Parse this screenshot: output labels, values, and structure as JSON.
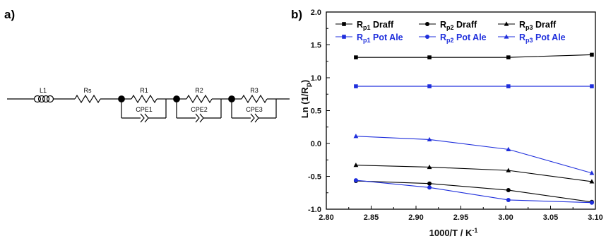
{
  "panel_a": {
    "label": "a)",
    "components": {
      "inductor": "L1",
      "series_resistor": "Rs",
      "r1": "R1",
      "r2": "R2",
      "r3": "R3",
      "cpe1": "CPE1",
      "cpe2": "CPE2",
      "cpe3": "CPE3"
    }
  },
  "panel_b": {
    "label": "b)"
  },
  "chart_data": {
    "type": "line",
    "title": "",
    "xlabel": "1000/T / K",
    "xlabel_sup": "-1",
    "ylabel": "Ln (1/R",
    "ylabel_sub": "p",
    "ylabel_end": ")",
    "xlim": [
      2.8,
      3.1
    ],
    "ylim": [
      -1.0,
      2.0
    ],
    "xticks": [
      "2.80",
      "2.85",
      "2.90",
      "2.95",
      "3.00",
      "3.05",
      "3.10"
    ],
    "yticks": [
      "-1.0",
      "-0.5",
      "0.0",
      "0.5",
      "1.0",
      "1.5",
      "2.0"
    ],
    "grid": false,
    "legend_position": "top",
    "x": [
      2.833,
      2.915,
      3.003,
      3.096
    ],
    "series": [
      {
        "name_main": "R",
        "name_sub": "p1",
        "name_rest": " Draff",
        "color": "#000000",
        "marker": "square",
        "values": [
          1.31,
          1.31,
          1.31,
          1.35
        ]
      },
      {
        "name_main": "R",
        "name_sub": "p2",
        "name_rest": " Draff",
        "color": "#000000",
        "marker": "circle",
        "values": [
          -0.57,
          -0.61,
          -0.71,
          -0.89
        ]
      },
      {
        "name_main": "R",
        "name_sub": "p3",
        "name_rest": " Draff",
        "color": "#000000",
        "marker": "triangle",
        "values": [
          -0.33,
          -0.36,
          -0.41,
          -0.58
        ]
      },
      {
        "name_main": "R",
        "name_sub": "p1",
        "name_rest": " Pot Ale",
        "color": "#1f2fdc",
        "marker": "square",
        "values": [
          0.87,
          0.87,
          0.87,
          0.87
        ]
      },
      {
        "name_main": "R",
        "name_sub": "p2",
        "name_rest": " Pot Ale",
        "color": "#1f2fdc",
        "marker": "circle",
        "values": [
          -0.56,
          -0.67,
          -0.86,
          -0.9
        ]
      },
      {
        "name_main": "R",
        "name_sub": "p3",
        "name_rest": " Pot Ale",
        "color": "#1f2fdc",
        "marker": "triangle",
        "values": [
          0.11,
          0.06,
          -0.09,
          -0.45
        ]
      }
    ]
  }
}
